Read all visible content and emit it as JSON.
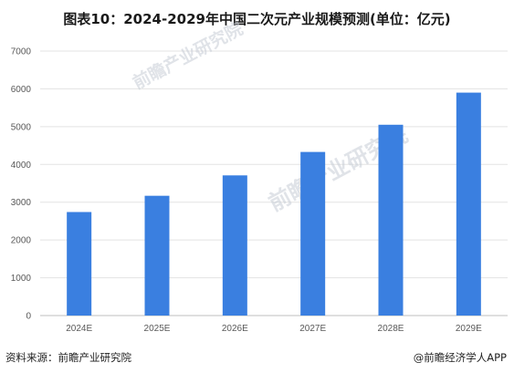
{
  "chart_data": {
    "type": "bar",
    "title": "图表10：2024-2029年中国二次元产业规模预测(单位：亿元)",
    "categories": [
      "2024E",
      "2025E",
      "2026E",
      "2027E",
      "2028E",
      "2029E"
    ],
    "values": [
      2740,
      3170,
      3710,
      4330,
      5050,
      5900
    ],
    "ylim": [
      0,
      7000
    ],
    "yticks": [
      0,
      1000,
      2000,
      3000,
      4000,
      5000,
      6000,
      7000
    ],
    "xlabel": "",
    "ylabel": "",
    "grid": true,
    "bar_color": "#3a7fe0"
  },
  "watermark": "前瞻产业研究院",
  "source": "资料来源：前瞻产业研究院",
  "brand": "@前瞻经济学人APP"
}
